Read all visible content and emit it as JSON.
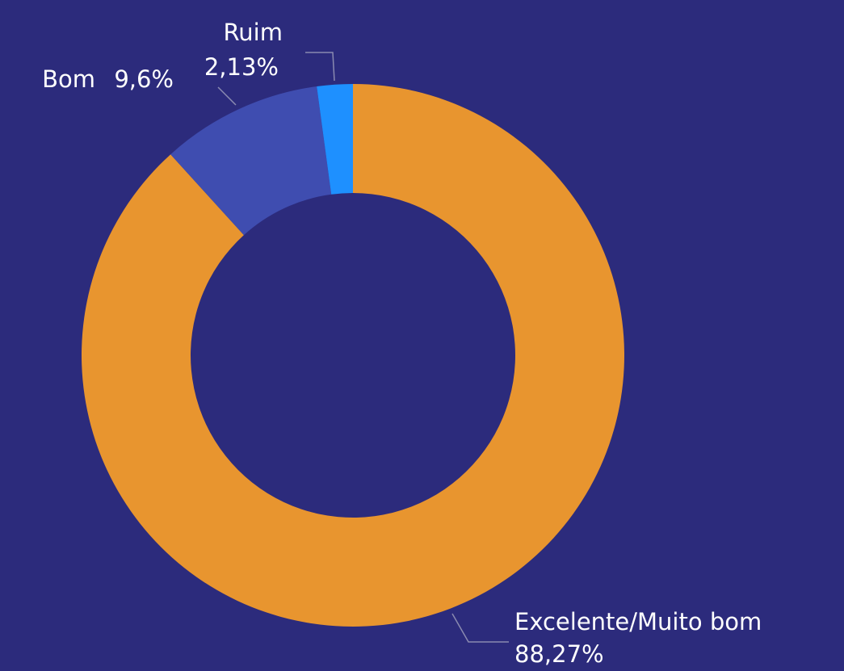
{
  "chart_data": {
    "type": "donut",
    "categories": [
      "Excelente/Muito bom",
      "Bom",
      "Ruim"
    ],
    "values": [
      88.27,
      9.6,
      2.13
    ],
    "value_labels": [
      "88,27%",
      "9,6%",
      "2,13%"
    ],
    "colors": [
      "#e8952f",
      "#3f4db0",
      "#1e90ff"
    ]
  }
}
